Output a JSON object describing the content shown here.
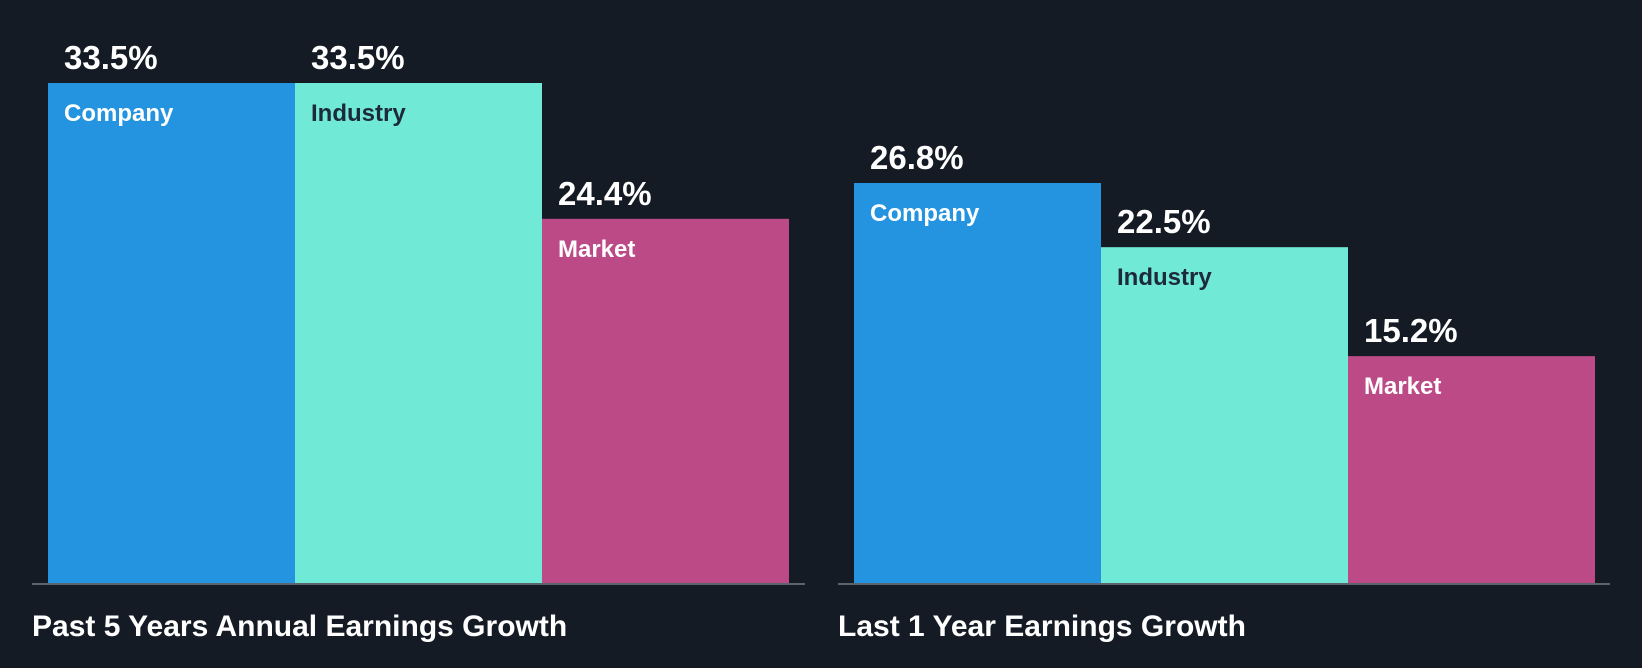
{
  "colors": {
    "background": "#151b24",
    "baseline": "#5c636d",
    "label_dark": "#1c2a3a",
    "label_light": "#ffffff"
  },
  "chart_data": [
    {
      "type": "bar",
      "title": "Past 5 Years Annual Earnings Growth",
      "categories": [
        "Company",
        "Industry",
        "Market"
      ],
      "values": [
        33.5,
        33.5,
        24.4
      ],
      "value_labels": [
        "33.5%",
        "33.5%",
        "24.4%"
      ],
      "colors": [
        "#2494e0",
        "#70e9d6",
        "#bc4a87"
      ],
      "label_colors": [
        "#ffffff",
        "#1c2a3a",
        "#ffffff"
      ],
      "unit": "%",
      "ylim": [
        0,
        33.5
      ],
      "grid": false,
      "legend": "none"
    },
    {
      "type": "bar",
      "title": "Last 1 Year Earnings Growth",
      "categories": [
        "Company",
        "Industry",
        "Market"
      ],
      "values": [
        26.8,
        22.5,
        15.2
      ],
      "value_labels": [
        "26.8%",
        "22.5%",
        "15.2%"
      ],
      "colors": [
        "#2494e0",
        "#70e9d6",
        "#bc4a87"
      ],
      "label_colors": [
        "#ffffff",
        "#1c2a3a",
        "#ffffff"
      ],
      "unit": "%",
      "ylim": [
        0,
        33.5
      ],
      "grid": false,
      "legend": "none"
    }
  ]
}
